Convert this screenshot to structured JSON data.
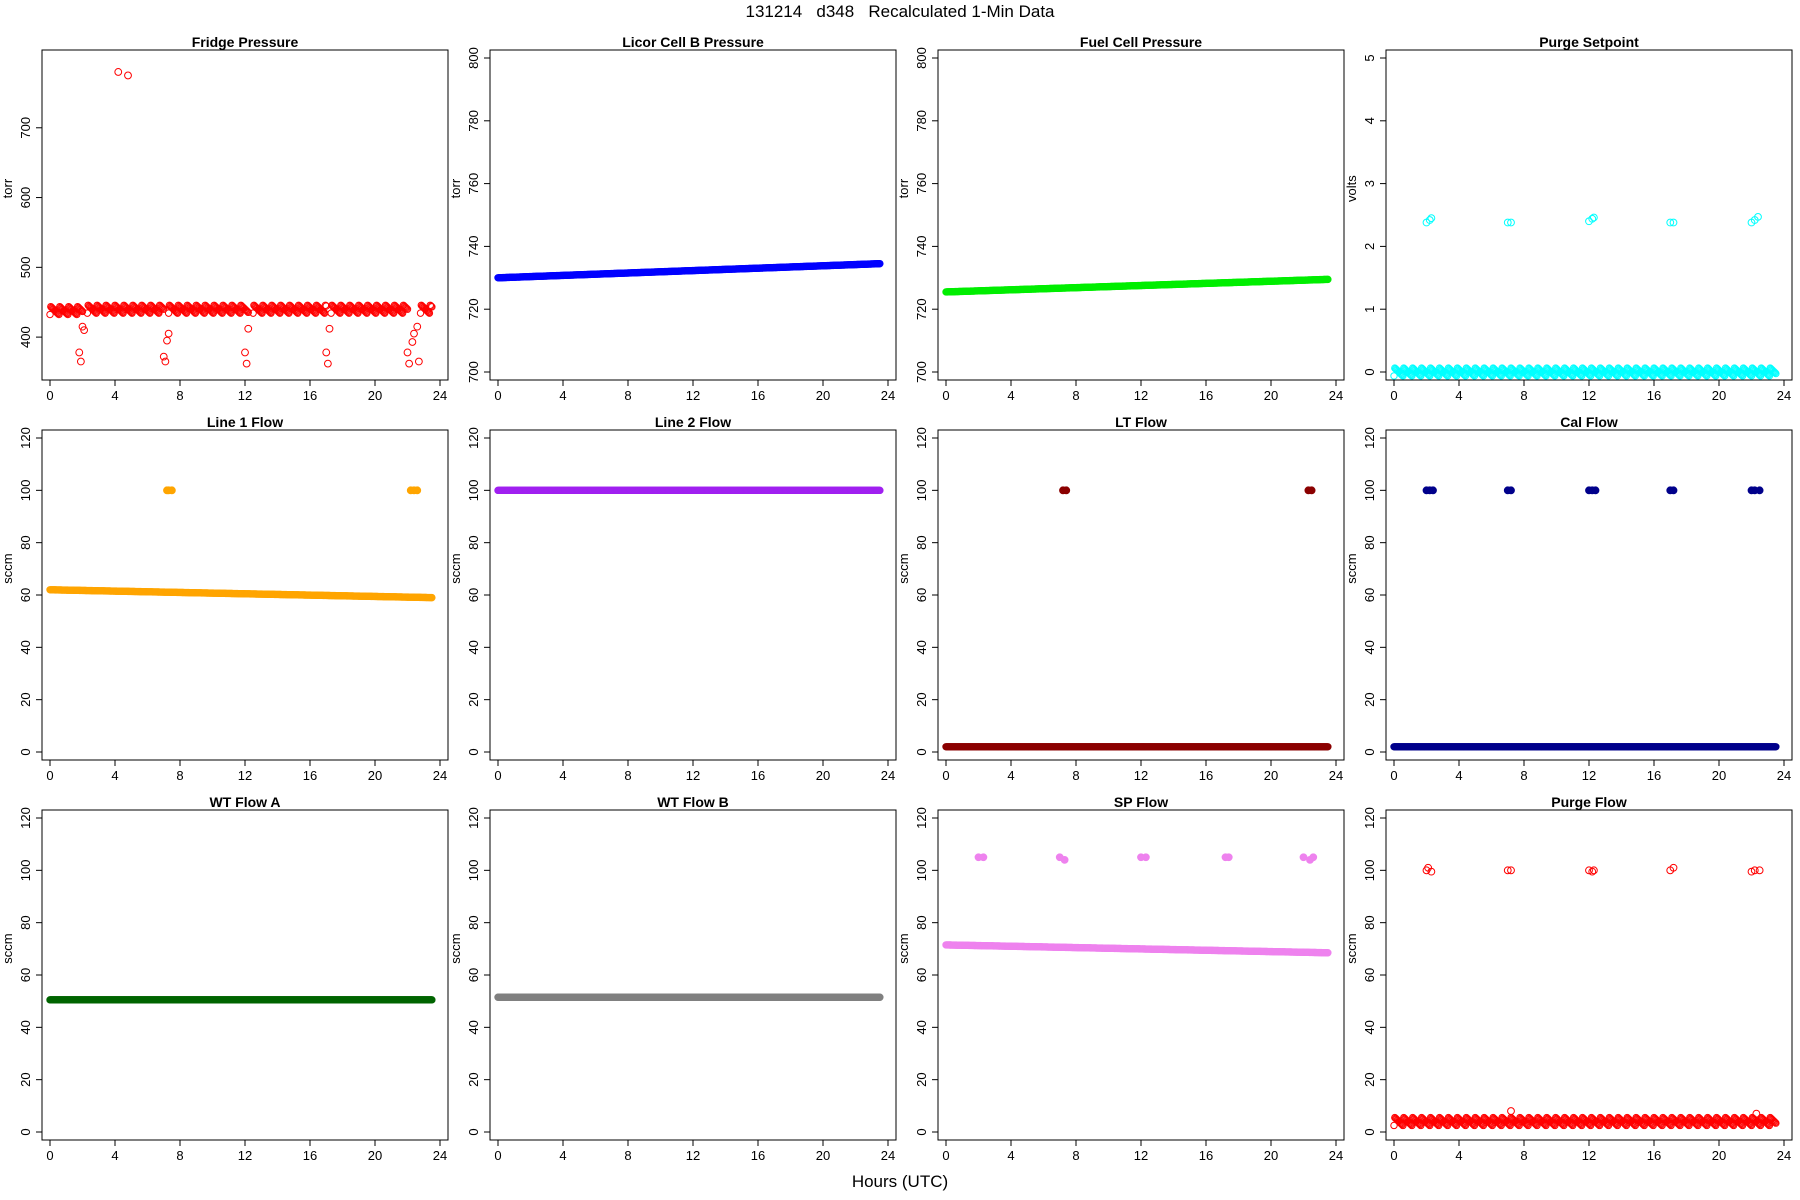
{
  "figure": {
    "title": "131214   d348   Recalculated 1-Min Data",
    "xlabel": "Hours (UTC)"
  },
  "chart_data": [
    {
      "type": "scatter",
      "title": "Fridge Pressure",
      "ylabel": "torr",
      "color": "#ff0000",
      "filled": false,
      "xlim": [
        0,
        24
      ],
      "xticks": [
        0,
        4,
        8,
        12,
        16,
        20,
        24
      ],
      "ylim": [
        350,
        800
      ],
      "yticks": [
        400,
        500,
        600,
        700
      ],
      "segments": [
        {
          "x": [
            0,
            2
          ],
          "y": [
            438,
            438
          ]
        },
        {
          "x": [
            2.3,
            7.0
          ],
          "y": [
            440,
            440
          ]
        },
        {
          "x": [
            7.3,
            12.2
          ],
          "y": [
            440,
            440
          ]
        },
        {
          "x": [
            12.5,
            17.0
          ],
          "y": [
            440,
            440
          ]
        },
        {
          "x": [
            17.3,
            22.0
          ],
          "y": [
            440,
            440
          ]
        },
        {
          "x": [
            22.8,
            23.5
          ],
          "y": [
            440,
            440
          ]
        }
      ],
      "points": [
        [
          4.2,
          780
        ],
        [
          4.8,
          775
        ],
        [
          1.8,
          378
        ],
        [
          1.9,
          365
        ],
        [
          2.0,
          415
        ],
        [
          2.1,
          410
        ],
        [
          7.0,
          372
        ],
        [
          7.1,
          365
        ],
        [
          7.2,
          395
        ],
        [
          7.3,
          405
        ],
        [
          12.0,
          378
        ],
        [
          12.1,
          362
        ],
        [
          12.2,
          412
        ],
        [
          17.0,
          378
        ],
        [
          17.1,
          362
        ],
        [
          17.2,
          412
        ],
        [
          22.0,
          378
        ],
        [
          22.1,
          362
        ],
        [
          22.3,
          393
        ],
        [
          22.4,
          405
        ],
        [
          22.6,
          415
        ],
        [
          22.7,
          365
        ]
      ]
    },
    {
      "type": "scatter",
      "title": "Licor Cell B Pressure",
      "ylabel": "torr",
      "color": "#0000ff",
      "filled": true,
      "xlim": [
        0,
        24
      ],
      "xticks": [
        0,
        4,
        8,
        12,
        16,
        20,
        24
      ],
      "ylim": [
        700,
        800
      ],
      "yticks": [
        700,
        720,
        740,
        760,
        780,
        800
      ],
      "segments": [
        {
          "x": [
            0,
            23.5
          ],
          "y": [
            730,
            734.5
          ]
        }
      ],
      "points": []
    },
    {
      "type": "scatter",
      "title": "Fuel Cell Pressure",
      "ylabel": "torr",
      "color": "#00ee00",
      "filled": true,
      "xlim": [
        0,
        24
      ],
      "xticks": [
        0,
        4,
        8,
        12,
        16,
        20,
        24
      ],
      "ylim": [
        700,
        800
      ],
      "yticks": [
        700,
        720,
        740,
        760,
        780,
        800
      ],
      "segments": [
        {
          "x": [
            0,
            23.5
          ],
          "y": [
            725.5,
            729.5
          ]
        }
      ],
      "points": []
    },
    {
      "type": "scatter",
      "title": "Purge Setpoint",
      "ylabel": "volts",
      "color": "#00ffff",
      "filled": false,
      "xlim": [
        0,
        24
      ],
      "xticks": [
        0,
        4,
        8,
        12,
        16,
        20,
        24
      ],
      "ylim": [
        0,
        5
      ],
      "yticks": [
        0,
        1,
        2,
        3,
        4,
        5
      ],
      "segments": [
        {
          "x": [
            0,
            23.5
          ],
          "y": [
            0,
            0
          ]
        }
      ],
      "points": [
        [
          2.0,
          2.38
        ],
        [
          2.2,
          2.42
        ],
        [
          2.3,
          2.45
        ],
        [
          7.0,
          2.38
        ],
        [
          7.2,
          2.38
        ],
        [
          12.0,
          2.4
        ],
        [
          12.2,
          2.44
        ],
        [
          12.3,
          2.46
        ],
        [
          17.0,
          2.38
        ],
        [
          17.2,
          2.38
        ],
        [
          22.0,
          2.38
        ],
        [
          22.2,
          2.42
        ],
        [
          22.4,
          2.47
        ]
      ]
    },
    {
      "type": "scatter",
      "title": "Line 1 Flow",
      "ylabel": "sccm",
      "color": "#ffa500",
      "filled": true,
      "xlim": [
        0,
        24
      ],
      "xticks": [
        0,
        4,
        8,
        12,
        16,
        20,
        24
      ],
      "ylim": [
        0,
        120
      ],
      "yticks": [
        0,
        20,
        40,
        60,
        80,
        100,
        120
      ],
      "segments": [
        {
          "x": [
            0,
            23.5
          ],
          "y": [
            62,
            59
          ]
        }
      ],
      "points": [
        [
          7.2,
          100
        ],
        [
          7.3,
          100
        ],
        [
          7.5,
          100
        ],
        [
          22.2,
          100
        ],
        [
          22.4,
          100
        ],
        [
          22.6,
          100
        ]
      ]
    },
    {
      "type": "scatter",
      "title": "Line 2 Flow",
      "ylabel": "sccm",
      "color": "#a020f0",
      "filled": true,
      "xlim": [
        0,
        24
      ],
      "xticks": [
        0,
        4,
        8,
        12,
        16,
        20,
        24
      ],
      "ylim": [
        0,
        120
      ],
      "yticks": [
        0,
        20,
        40,
        60,
        80,
        100,
        120
      ],
      "segments": [
        {
          "x": [
            0,
            23.5
          ],
          "y": [
            100,
            100
          ]
        }
      ],
      "points": []
    },
    {
      "type": "scatter",
      "title": "LT Flow",
      "ylabel": "sccm",
      "color": "#8b0000",
      "filled": true,
      "xlim": [
        0,
        24
      ],
      "xticks": [
        0,
        4,
        8,
        12,
        16,
        20,
        24
      ],
      "ylim": [
        0,
        120
      ],
      "yticks": [
        0,
        20,
        40,
        60,
        80,
        100,
        120
      ],
      "segments": [
        {
          "x": [
            0,
            23.5
          ],
          "y": [
            2,
            2
          ]
        }
      ],
      "points": [
        [
          7.2,
          100
        ],
        [
          7.4,
          100
        ],
        [
          22.3,
          100
        ],
        [
          22.5,
          100
        ]
      ]
    },
    {
      "type": "scatter",
      "title": "Cal Flow",
      "ylabel": "sccm",
      "color": "#00008b",
      "filled": true,
      "xlim": [
        0,
        24
      ],
      "xticks": [
        0,
        4,
        8,
        12,
        16,
        20,
        24
      ],
      "ylim": [
        0,
        120
      ],
      "yticks": [
        0,
        20,
        40,
        60,
        80,
        100,
        120
      ],
      "segments": [
        {
          "x": [
            0,
            23.5
          ],
          "y": [
            2,
            2
          ]
        }
      ],
      "points": [
        [
          2.0,
          100
        ],
        [
          2.2,
          100
        ],
        [
          2.4,
          100
        ],
        [
          7.0,
          100
        ],
        [
          7.2,
          100
        ],
        [
          12.0,
          100
        ],
        [
          12.2,
          100
        ],
        [
          12.4,
          100
        ],
        [
          17.0,
          100
        ],
        [
          17.2,
          100
        ],
        [
          22.0,
          100
        ],
        [
          22.2,
          100
        ],
        [
          22.5,
          100
        ]
      ]
    },
    {
      "type": "scatter",
      "title": "WT Flow A",
      "ylabel": "sccm",
      "color": "#006400",
      "filled": true,
      "xlim": [
        0,
        24
      ],
      "xticks": [
        0,
        4,
        8,
        12,
        16,
        20,
        24
      ],
      "ylim": [
        0,
        120
      ],
      "yticks": [
        0,
        20,
        40,
        60,
        80,
        100,
        120
      ],
      "segments": [
        {
          "x": [
            0,
            23.5
          ],
          "y": [
            50.5,
            50.5
          ]
        }
      ],
      "points": []
    },
    {
      "type": "scatter",
      "title": "WT Flow B",
      "ylabel": "sccm",
      "color": "#808080",
      "filled": true,
      "xlim": [
        0,
        24
      ],
      "xticks": [
        0,
        4,
        8,
        12,
        16,
        20,
        24
      ],
      "ylim": [
        0,
        120
      ],
      "yticks": [
        0,
        20,
        40,
        60,
        80,
        100,
        120
      ],
      "segments": [
        {
          "x": [
            0,
            23.5
          ],
          "y": [
            51.5,
            51.5
          ]
        }
      ],
      "points": []
    },
    {
      "type": "scatter",
      "title": "SP Flow",
      "ylabel": "sccm",
      "color": "#ee82ee",
      "filled": true,
      "xlim": [
        0,
        24
      ],
      "xticks": [
        0,
        4,
        8,
        12,
        16,
        20,
        24
      ],
      "ylim": [
        0,
        120
      ],
      "yticks": [
        0,
        20,
        40,
        60,
        80,
        100,
        120
      ],
      "segments": [
        {
          "x": [
            0,
            23.5
          ],
          "y": [
            71.5,
            68.5
          ]
        }
      ],
      "points": [
        [
          2.0,
          105
        ],
        [
          2.3,
          105
        ],
        [
          7.0,
          105
        ],
        [
          7.3,
          104
        ],
        [
          12.0,
          105
        ],
        [
          12.3,
          105
        ],
        [
          17.2,
          105
        ],
        [
          17.4,
          105
        ],
        [
          22.0,
          105
        ],
        [
          22.4,
          104
        ],
        [
          22.6,
          105
        ]
      ]
    },
    {
      "type": "scatter",
      "title": "Purge Flow",
      "ylabel": "sccm",
      "color": "#ff0000",
      "filled": false,
      "xlim": [
        0,
        24
      ],
      "xticks": [
        0,
        4,
        8,
        12,
        16,
        20,
        24
      ],
      "ylim": [
        0,
        120
      ],
      "yticks": [
        0,
        20,
        40,
        60,
        80,
        100,
        120
      ],
      "segments": [
        {
          "x": [
            0,
            23.5
          ],
          "y": [
            4,
            4
          ]
        }
      ],
      "points": [
        [
          2.0,
          100
        ],
        [
          2.1,
          101
        ],
        [
          2.3,
          99.5
        ],
        [
          7.0,
          100
        ],
        [
          7.2,
          100
        ],
        [
          12.0,
          100
        ],
        [
          12.2,
          99.5
        ],
        [
          12.3,
          100
        ],
        [
          17.0,
          100
        ],
        [
          17.2,
          101
        ],
        [
          22.0,
          99.5
        ],
        [
          22.2,
          100
        ],
        [
          22.5,
          100
        ],
        [
          7.2,
          8
        ],
        [
          22.3,
          7
        ]
      ]
    }
  ]
}
